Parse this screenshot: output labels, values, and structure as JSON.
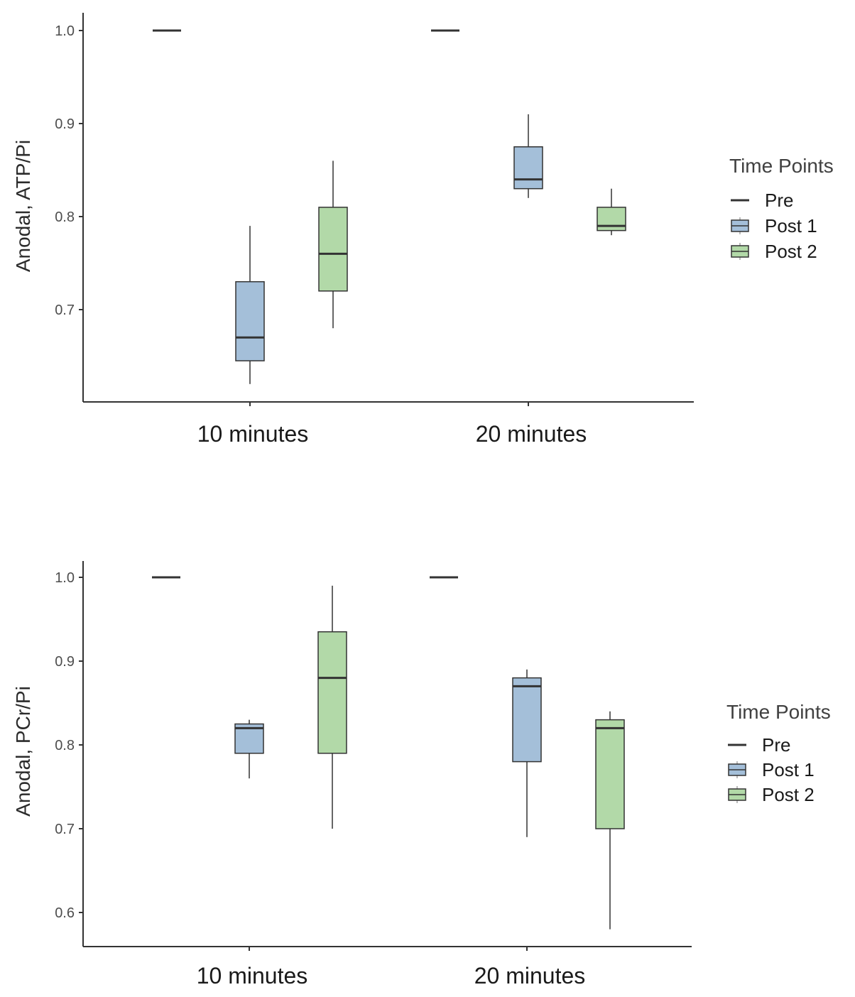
{
  "legend": {
    "title": "Time Points",
    "items": [
      {
        "key": "Pre",
        "label": "Pre",
        "kind": "line"
      },
      {
        "key": "Post 1",
        "label": "Post 1",
        "kind": "box",
        "color": "#a4bfd9"
      },
      {
        "key": "Post 2",
        "label": "Post 2",
        "kind": "box",
        "color": "#b2d9a8"
      }
    ]
  },
  "colors": {
    "post1": "#a4bfd9",
    "post2": "#b2d9a8",
    "stroke": "#333333",
    "axis": "#333333"
  },
  "chart_data": [
    {
      "type": "box",
      "ylabel": "Anodal, ATP/Pi",
      "xlabel": "",
      "categories": [
        "10 minutes",
        "20 minutes"
      ],
      "ylim": [
        0.6,
        1.02
      ],
      "yticks": [
        "0.7",
        "0.8",
        "0.9",
        "1.0"
      ],
      "legend_position": "right",
      "series": [
        {
          "name": "Pre",
          "boxes": [
            {
              "category": "10 minutes",
              "min": 1.0,
              "q1": 1.0,
              "median": 1.0,
              "q3": 1.0,
              "max": 1.0
            },
            {
              "category": "20 minutes",
              "min": 1.0,
              "q1": 1.0,
              "median": 1.0,
              "q3": 1.0,
              "max": 1.0
            }
          ]
        },
        {
          "name": "Post 1",
          "boxes": [
            {
              "category": "10 minutes",
              "min": 0.62,
              "q1": 0.645,
              "median": 0.67,
              "q3": 0.73,
              "max": 0.79
            },
            {
              "category": "20 minutes",
              "min": 0.82,
              "q1": 0.83,
              "median": 0.84,
              "q3": 0.875,
              "max": 0.91
            }
          ]
        },
        {
          "name": "Post 2",
          "boxes": [
            {
              "category": "10 minutes",
              "min": 0.68,
              "q1": 0.72,
              "median": 0.76,
              "q3": 0.81,
              "max": 0.86
            },
            {
              "category": "20 minutes",
              "min": 0.78,
              "q1": 0.785,
              "median": 0.79,
              "q3": 0.81,
              "max": 0.83
            }
          ]
        }
      ]
    },
    {
      "type": "box",
      "ylabel": "Anodal, PCr/Pi",
      "xlabel": "",
      "categories": [
        "10 minutes",
        "20 minutes"
      ],
      "ylim": [
        0.56,
        1.04
      ],
      "yticks": [
        "0.6",
        "0.7",
        "0.8",
        "0.9",
        "1.0"
      ],
      "legend_position": "right",
      "series": [
        {
          "name": "Pre",
          "boxes": [
            {
              "category": "10 minutes",
              "min": 1.0,
              "q1": 1.0,
              "median": 1.0,
              "q3": 1.0,
              "max": 1.0
            },
            {
              "category": "20 minutes",
              "min": 1.0,
              "q1": 1.0,
              "median": 1.0,
              "q3": 1.0,
              "max": 1.0
            }
          ]
        },
        {
          "name": "Post 1",
          "boxes": [
            {
              "category": "10 minutes",
              "min": 0.76,
              "q1": 0.79,
              "median": 0.82,
              "q3": 0.825,
              "max": 0.83
            },
            {
              "category": "20 minutes",
              "min": 0.69,
              "q1": 0.78,
              "median": 0.87,
              "q3": 0.88,
              "max": 0.89
            }
          ]
        },
        {
          "name": "Post 2",
          "boxes": [
            {
              "category": "10 minutes",
              "min": 0.7,
              "q1": 0.79,
              "median": 0.88,
              "q3": 0.935,
              "max": 0.99
            },
            {
              "category": "20 minutes",
              "min": 0.58,
              "q1": 0.7,
              "median": 0.82,
              "q3": 0.83,
              "max": 0.84
            }
          ]
        }
      ]
    }
  ]
}
